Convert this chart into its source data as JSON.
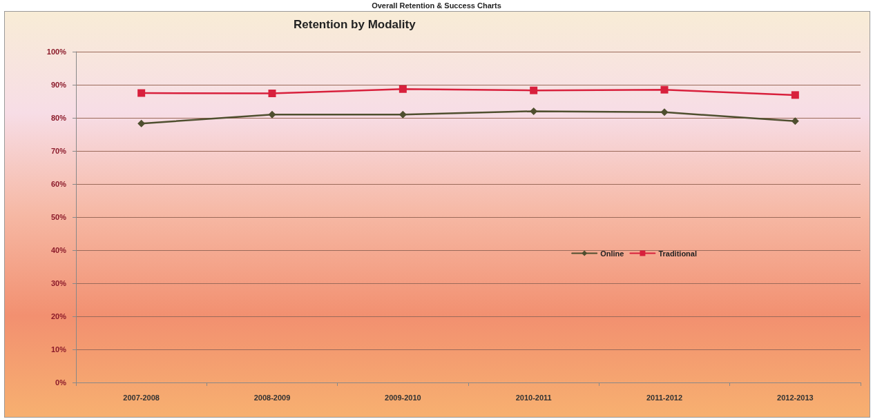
{
  "chart_data": {
    "type": "line",
    "title": "Retention by Modality",
    "annotations": [
      "Overall Retention & Success Charts"
    ],
    "categories": [
      "2007-2008",
      "2008-2009",
      "2009-2010",
      "2010-2011",
      "2011-2012",
      "2012-2013"
    ],
    "series": [
      {
        "name": "Online",
        "color": "#4f4f2f",
        "marker": "diamond",
        "values": [
          78.3,
          81.0,
          81.0,
          82.0,
          81.7,
          79.0
        ]
      },
      {
        "name": "Traditional",
        "color": "#d8203c",
        "marker": "square",
        "values": [
          87.5,
          87.4,
          88.7,
          88.3,
          88.5,
          86.9
        ]
      }
    ],
    "ylim": [
      0,
      100
    ],
    "yticks": [
      {
        "value": 0,
        "label": "0%"
      },
      {
        "value": 10,
        "label": "10%"
      },
      {
        "value": 20,
        "label": "20%"
      },
      {
        "value": 30,
        "label": "30%"
      },
      {
        "value": 40,
        "label": "40%"
      },
      {
        "value": 50,
        "label": "50%"
      },
      {
        "value": 60,
        "label": "60%"
      },
      {
        "value": 70,
        "label": "70%"
      },
      {
        "value": 80,
        "label": "80%"
      },
      {
        "value": 90,
        "label": "90%"
      },
      {
        "value": 100,
        "label": "100%"
      }
    ],
    "grid": "y",
    "legend": "right",
    "line_style": "solid"
  }
}
